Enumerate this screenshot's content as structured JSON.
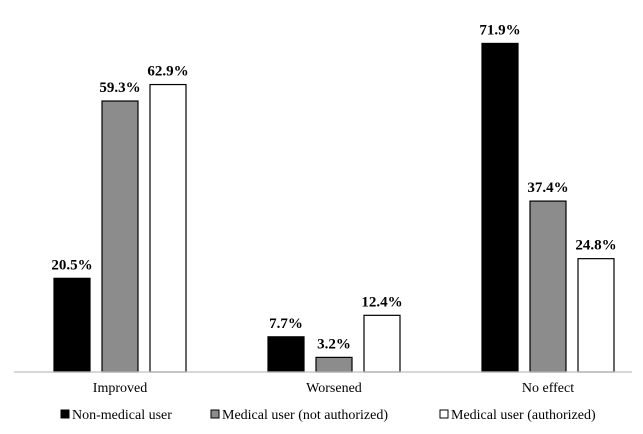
{
  "chart_data": {
    "type": "bar",
    "title": "",
    "xlabel": "",
    "ylabel": "",
    "ylim": [
      0,
      100
    ],
    "grid": false,
    "legend_position": "bottom",
    "categories": [
      "Improved",
      "Worsened",
      "No effect"
    ],
    "series": [
      {
        "name": "Non-medical user",
        "values": [
          20.5,
          7.7,
          71.9
        ],
        "labels": [
          "20.5%",
          "7.7%",
          "71.9%"
        ],
        "color": "#000000"
      },
      {
        "name": "Medical user (not authorized)",
        "values": [
          59.3,
          3.2,
          37.4
        ],
        "labels": [
          "59.3%",
          "3.2%",
          "37.4%"
        ],
        "color": "#8c8c8c"
      },
      {
        "name": "Medical user (authorized)",
        "values": [
          62.9,
          12.4,
          24.8
        ],
        "labels": [
          "62.9%",
          "12.4%",
          "24.8%"
        ],
        "color": "#ffffff"
      }
    ]
  }
}
